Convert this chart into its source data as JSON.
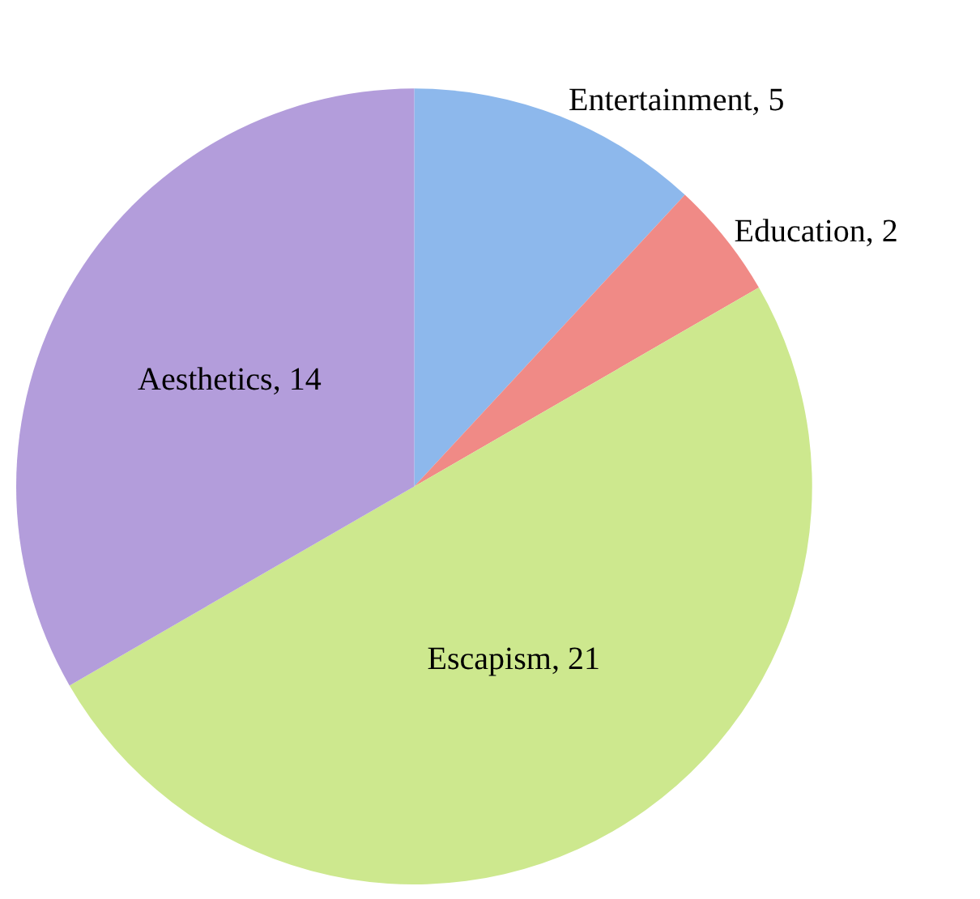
{
  "chart_data": {
    "type": "pie",
    "categories": [
      "Entertainment, 5",
      "Education, 2",
      "Escapism, 21",
      "Aesthetics, 14"
    ],
    "values": [
      5,
      2,
      21,
      14
    ],
    "colors": [
      "#8db8ec",
      "#f08a86",
      "#cde88e",
      "#b39ddb"
    ],
    "legend": false
  }
}
